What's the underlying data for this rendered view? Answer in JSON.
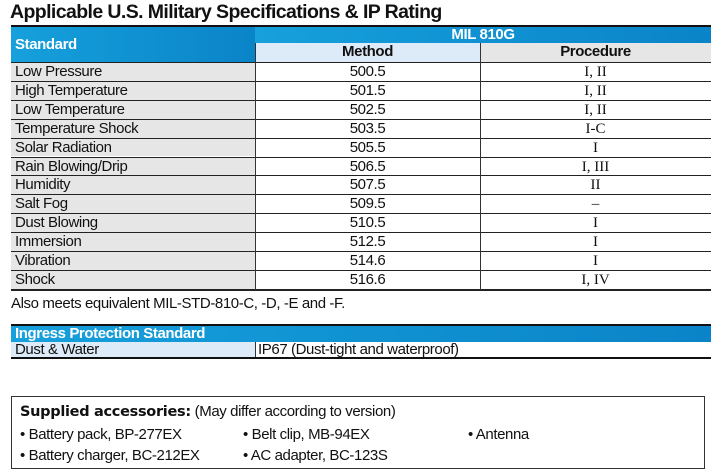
{
  "title": "Applicable U.S. Military Specifications & IP Rating",
  "mil_table": {
    "standard_header": "Standard",
    "group_header": "MIL 810G",
    "method_header": "Method",
    "procedure_header": "Procedure",
    "rows": [
      {
        "standard": "Low Pressure",
        "method": "500.5",
        "procedure": "I, II"
      },
      {
        "standard": "High Temperature",
        "method": "501.5",
        "procedure": "I, II"
      },
      {
        "standard": "Low Temperature",
        "method": "502.5",
        "procedure": "I, II"
      },
      {
        "standard": "Temperature Shock",
        "method": "503.5",
        "procedure": "I-C"
      },
      {
        "standard": "Solar Radiation",
        "method": "505.5",
        "procedure": "I"
      },
      {
        "standard": "Rain Blowing/Drip",
        "method": "506.5",
        "procedure": "I, III"
      },
      {
        "standard": "Humidity",
        "method": "507.5",
        "procedure": "II"
      },
      {
        "standard": "Salt Fog",
        "method": "509.5",
        "procedure": "–"
      },
      {
        "standard": "Dust Blowing",
        "method": "510.5",
        "procedure": "I"
      },
      {
        "standard": "Immersion",
        "method": "512.5",
        "procedure": "I"
      },
      {
        "standard": "Vibration",
        "method": "514.6",
        "procedure": "I"
      },
      {
        "standard": "Shock",
        "method": "516.6",
        "procedure": "I, IV"
      }
    ]
  },
  "note": "Also meets equivalent MIL-STD-810-C, -D, -E and -F.",
  "ip_table": {
    "header": "Ingress Protection Standard",
    "label": "Dust & Water",
    "value": "IP67 (Dust-tight and waterproof)"
  },
  "accessories": {
    "heading": "Supplied accessories:",
    "subheading": "(May differ according to version)",
    "items": [
      "• Battery pack, BP-277EX",
      "• Belt clip, MB-94EX",
      "• Antenna",
      "• Battery charger, BC-212EX",
      "• AC adapter, BC-123S"
    ]
  }
}
